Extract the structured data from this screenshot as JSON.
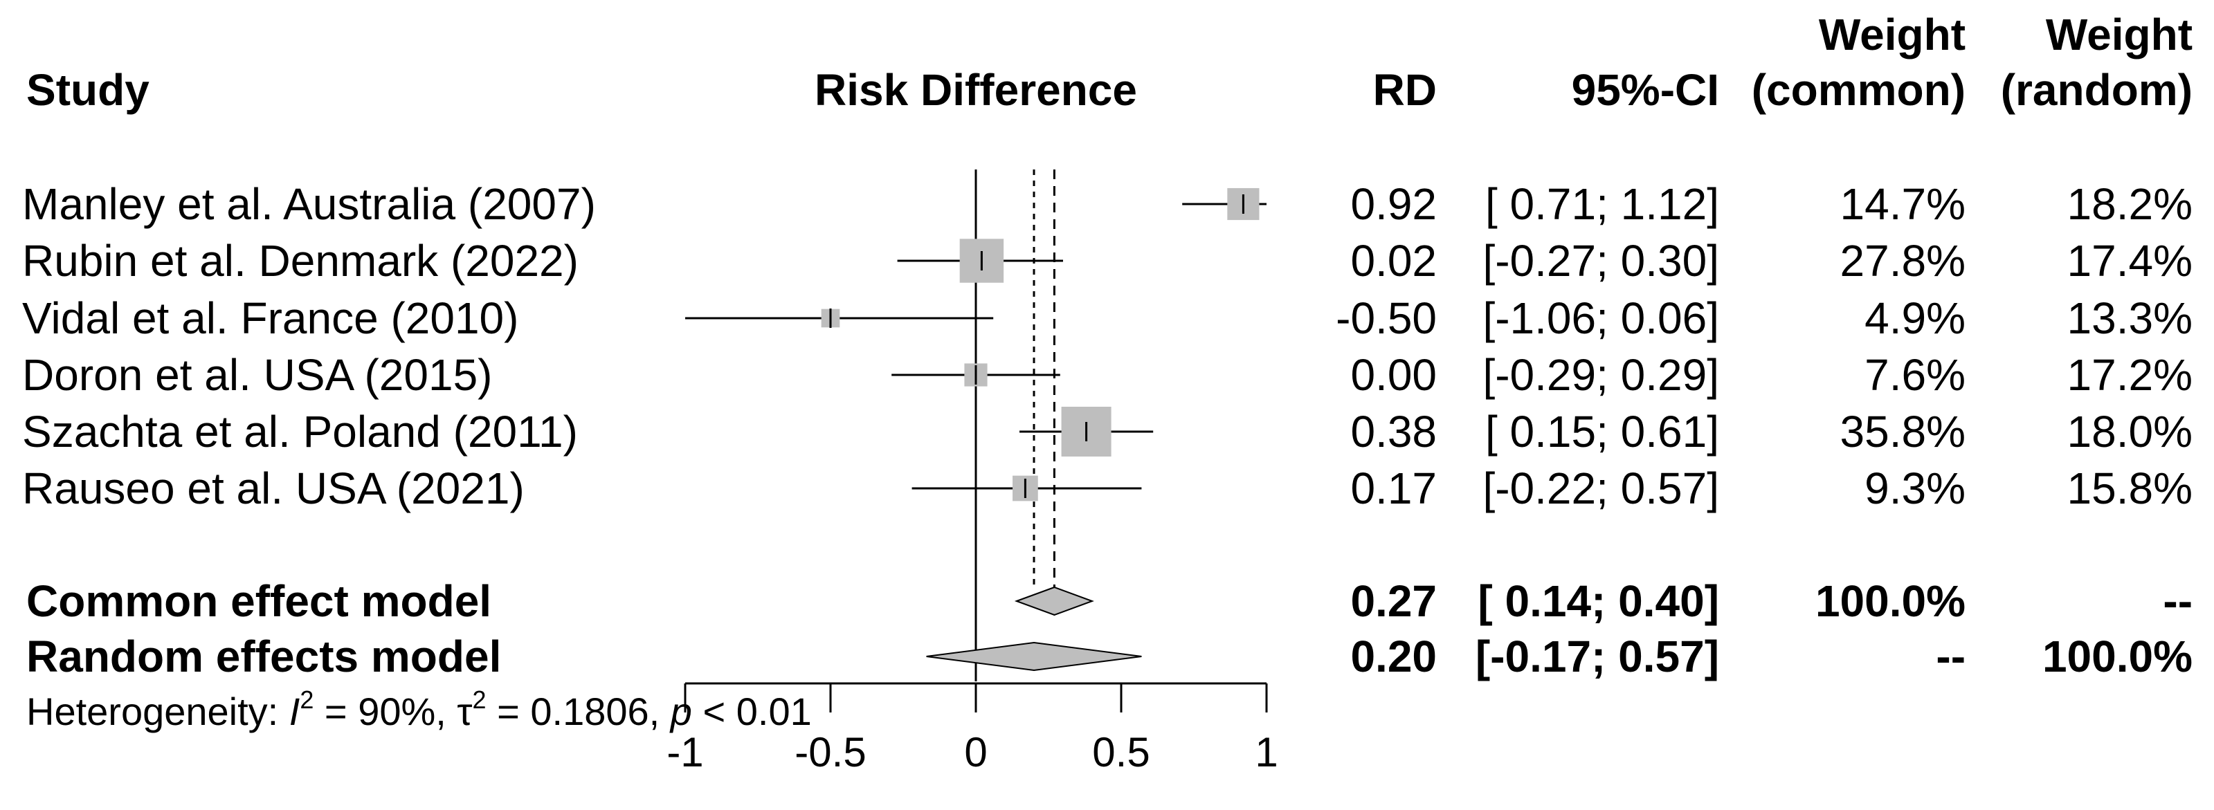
{
  "headers": {
    "study": "Study",
    "plot": "Risk Difference",
    "rd": "RD",
    "ci": "95%-CI",
    "weight_common_top": "Weight",
    "weight_common_bottom": "(common)",
    "weight_random_top": "Weight",
    "weight_random_bottom": "(random)"
  },
  "heterogeneity": {
    "prefix": "Heterogeneity: ",
    "i2_symbol": "I",
    "i2_value": " = 90%, ",
    "tau_symbol": "τ",
    "tau_value": " = 0.1806, ",
    "p_symbol": "p",
    "p_value": " < 0.01"
  },
  "chart_data": {
    "type": "forest",
    "xlim": [
      -1,
      1
    ],
    "x_ticks": [
      -1,
      -0.5,
      0,
      0.5,
      1
    ],
    "x_tick_labels": [
      "-1",
      "-0.5",
      "0",
      "0.5",
      "1"
    ],
    "null_line": 0,
    "studies": [
      {
        "name": "Manley et al. Australia (2007)",
        "rd": 0.92,
        "lo": 0.71,
        "hi": 1.12,
        "rd_label": "0.92",
        "ci_label": "[ 0.71; 1.12]",
        "w_common": 14.7,
        "w_common_label": "14.7%",
        "w_random_label": "18.2%"
      },
      {
        "name": "Rubin et al. Denmark (2022)",
        "rd": 0.02,
        "lo": -0.27,
        "hi": 0.3,
        "rd_label": "0.02",
        "ci_label": "[-0.27; 0.30]",
        "w_common": 27.8,
        "w_common_label": "27.8%",
        "w_random_label": "17.4%"
      },
      {
        "name": "Vidal et al. France (2010)",
        "rd": -0.5,
        "lo": -1.06,
        "hi": 0.06,
        "rd_label": "-0.50",
        "ci_label": "[-1.06; 0.06]",
        "w_common": 4.9,
        "w_common_label": "4.9%",
        "w_random_label": "13.3%"
      },
      {
        "name": "Doron et al. USA (2015)",
        "rd": 0.0,
        "lo": -0.29,
        "hi": 0.29,
        "rd_label": "0.00",
        "ci_label": "[-0.29; 0.29]",
        "w_common": 7.6,
        "w_common_label": "7.6%",
        "w_random_label": "17.2%"
      },
      {
        "name": "Szachta et al. Poland (2011)",
        "rd": 0.38,
        "lo": 0.15,
        "hi": 0.61,
        "rd_label": "0.38",
        "ci_label": "[ 0.15; 0.61]",
        "w_common": 35.8,
        "w_common_label": "35.8%",
        "w_random_label": "18.0%"
      },
      {
        "name": "Rauseo et al. USA (2021)",
        "rd": 0.17,
        "lo": -0.22,
        "hi": 0.57,
        "rd_label": "0.17",
        "ci_label": "[-0.22; 0.57]",
        "w_common": 9.3,
        "w_common_label": "9.3%",
        "w_random_label": "15.8%"
      }
    ],
    "summaries": [
      {
        "name": "Common effect model",
        "rd": 0.27,
        "lo": 0.14,
        "hi": 0.4,
        "rd_label": "0.27",
        "ci_label": "[ 0.14; 0.40]",
        "w_common_label": "100.0%",
        "w_random_label": "--"
      },
      {
        "name": "Random effects model",
        "rd": 0.2,
        "lo": -0.17,
        "hi": 0.57,
        "rd_label": "0.20",
        "ci_label": "[-0.17; 0.57]",
        "w_common_label": "--",
        "w_random_label": "100.0%"
      }
    ],
    "colors": {
      "box": "#bebebe",
      "diamond": "#bebebe",
      "line": "#000000"
    }
  }
}
